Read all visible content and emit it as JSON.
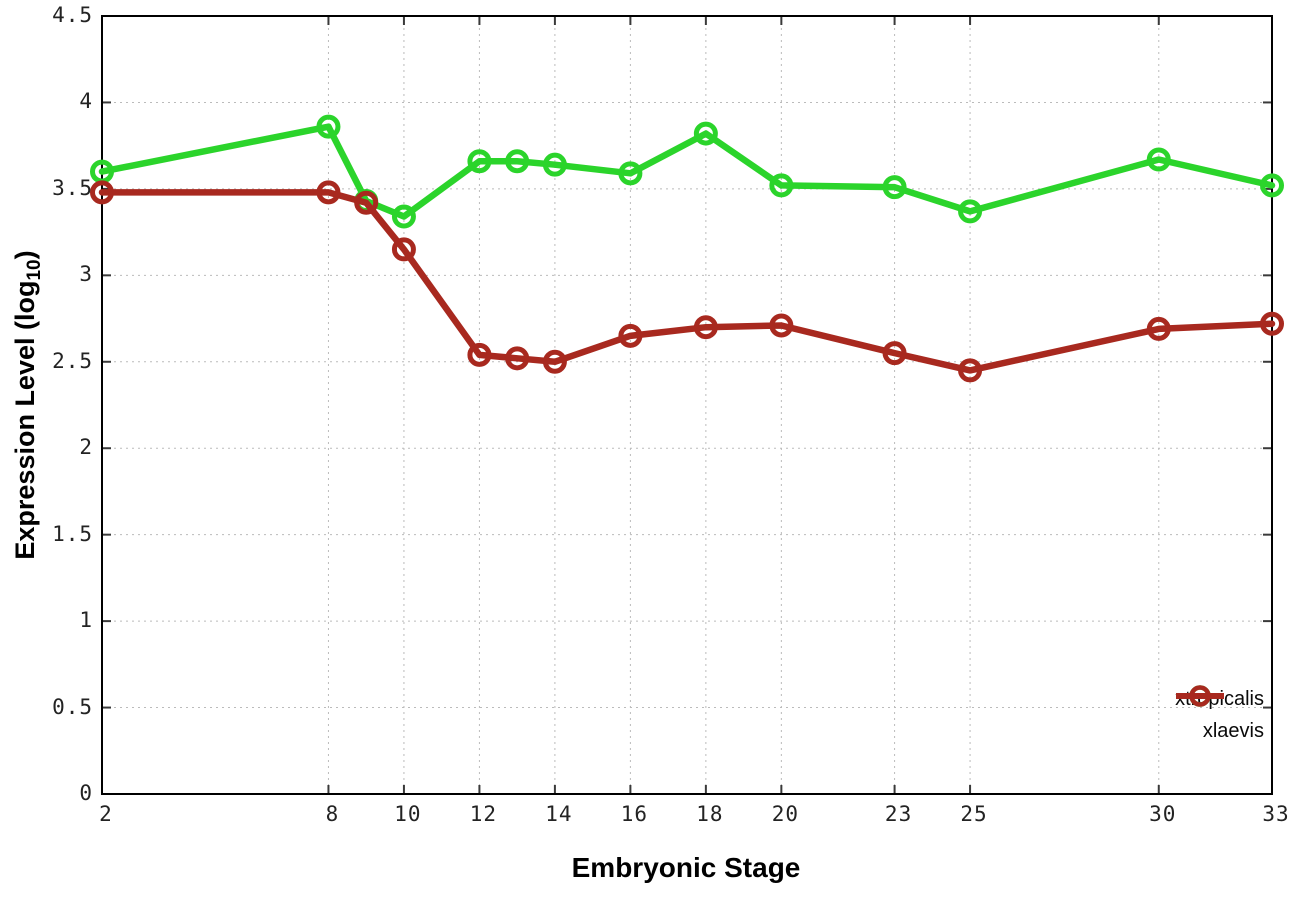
{
  "chart_data": {
    "type": "line",
    "title": "",
    "xlabel": "Embryonic Stage",
    "ylabel": "Expression Level (log10)",
    "ylabel_parts": {
      "main": "Expression Level (log",
      "sub": "10",
      "end": ")"
    },
    "x": [
      2,
      8,
      9,
      10,
      12,
      13,
      14,
      16,
      18,
      20,
      23,
      25,
      30,
      33
    ],
    "series": [
      {
        "name": "xtropicalis",
        "color": "#2bd42b",
        "values": [
          3.6,
          3.86,
          3.43,
          3.34,
          3.66,
          3.66,
          3.64,
          3.59,
          3.82,
          3.52,
          3.51,
          3.37,
          3.67,
          3.52
        ]
      },
      {
        "name": "xlaevis",
        "color": "#a8291f",
        "values": [
          3.48,
          3.48,
          3.42,
          3.15,
          2.54,
          2.52,
          2.5,
          2.65,
          2.7,
          2.71,
          2.55,
          2.45,
          2.69,
          2.72
        ]
      }
    ],
    "x_ticks": [
      2,
      8,
      10,
      12,
      14,
      16,
      18,
      20,
      23,
      25,
      30,
      33
    ],
    "y_ticks": [
      "0",
      "0.5",
      "1",
      "1.5",
      "2",
      "2.5",
      "3",
      "3.5",
      "4",
      "4.5"
    ],
    "xlim": [
      2,
      33
    ],
    "ylim": [
      0,
      4.5
    ],
    "grid": true,
    "legend_position": "bottom-right",
    "colors": {
      "axis": "#000000",
      "grid": "#bbbbbb",
      "tick": "#3a3a3a",
      "tick_label": "#232323"
    }
  }
}
